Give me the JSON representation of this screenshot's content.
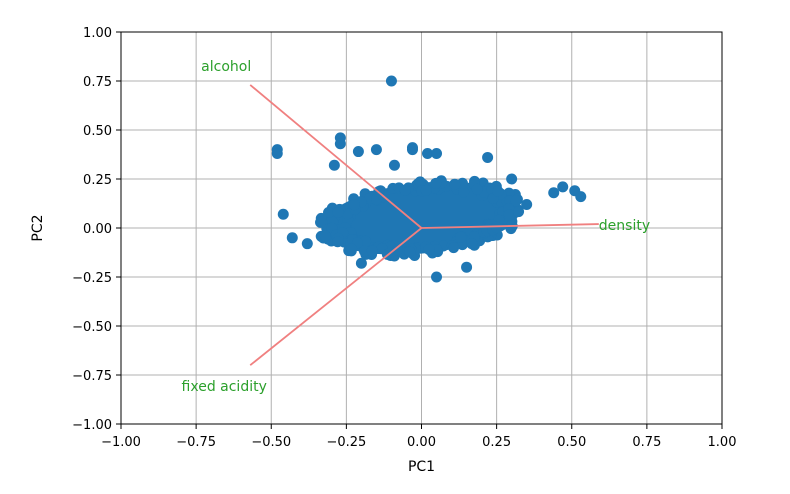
{
  "chart_data": {
    "type": "scatter",
    "title": "",
    "xlabel": "PC1",
    "ylabel": "PC2",
    "xlim": [
      -1.0,
      1.0
    ],
    "ylim": [
      -1.0,
      1.0
    ],
    "grid": true,
    "x_ticks": [
      "−1.00",
      "−0.75",
      "−0.50",
      "−0.25",
      "0.00",
      "0.25",
      "0.50",
      "0.75",
      "1.00"
    ],
    "y_ticks": [
      "1.00",
      "0.75",
      "0.50",
      "0.25",
      "0.00",
      "−0.25",
      "−0.50",
      "−0.75",
      "−1.00"
    ],
    "point_color": "#1f77b4",
    "vector_color": "#f08080",
    "vector_label_color": "#2ca02c",
    "points": [
      {
        "x": -0.1,
        "y": 0.75
      },
      {
        "x": -0.48,
        "y": 0.4
      },
      {
        "x": -0.48,
        "y": 0.38
      },
      {
        "x": -0.27,
        "y": 0.46
      },
      {
        "x": -0.27,
        "y": 0.43
      },
      {
        "x": -0.21,
        "y": 0.39
      },
      {
        "x": -0.15,
        "y": 0.4
      },
      {
        "x": -0.09,
        "y": 0.32
      },
      {
        "x": -0.03,
        "y": 0.41
      },
      {
        "x": -0.03,
        "y": 0.4
      },
      {
        "x": 0.02,
        "y": 0.38
      },
      {
        "x": 0.05,
        "y": 0.38
      },
      {
        "x": 0.22,
        "y": 0.36
      },
      {
        "x": -0.46,
        "y": 0.07
      },
      {
        "x": -0.43,
        "y": -0.05
      },
      {
        "x": -0.38,
        "y": -0.08
      },
      {
        "x": -0.32,
        "y": -0.04
      },
      {
        "x": -0.29,
        "y": 0.32
      },
      {
        "x": 0.44,
        "y": 0.18
      },
      {
        "x": 0.47,
        "y": 0.21
      },
      {
        "x": 0.51,
        "y": 0.19
      },
      {
        "x": 0.53,
        "y": 0.16
      },
      {
        "x": 0.35,
        "y": 0.12
      },
      {
        "x": 0.05,
        "y": -0.25
      },
      {
        "x": 0.15,
        "y": -0.2
      },
      {
        "x": -0.2,
        "y": -0.18
      },
      {
        "x": 0.3,
        "y": 0.25
      }
    ],
    "cloud": {
      "cx": 0.0,
      "cy": 0.05,
      "rx": 0.33,
      "ry": 0.18,
      "rot_deg": -6
    },
    "vectors": [
      {
        "label": "alcohol",
        "x": -0.57,
        "y": 0.73
      },
      {
        "label": "density",
        "x": 0.59,
        "y": 0.02
      },
      {
        "label": "fixed acidity",
        "x": -0.57,
        "y": -0.7
      }
    ]
  }
}
